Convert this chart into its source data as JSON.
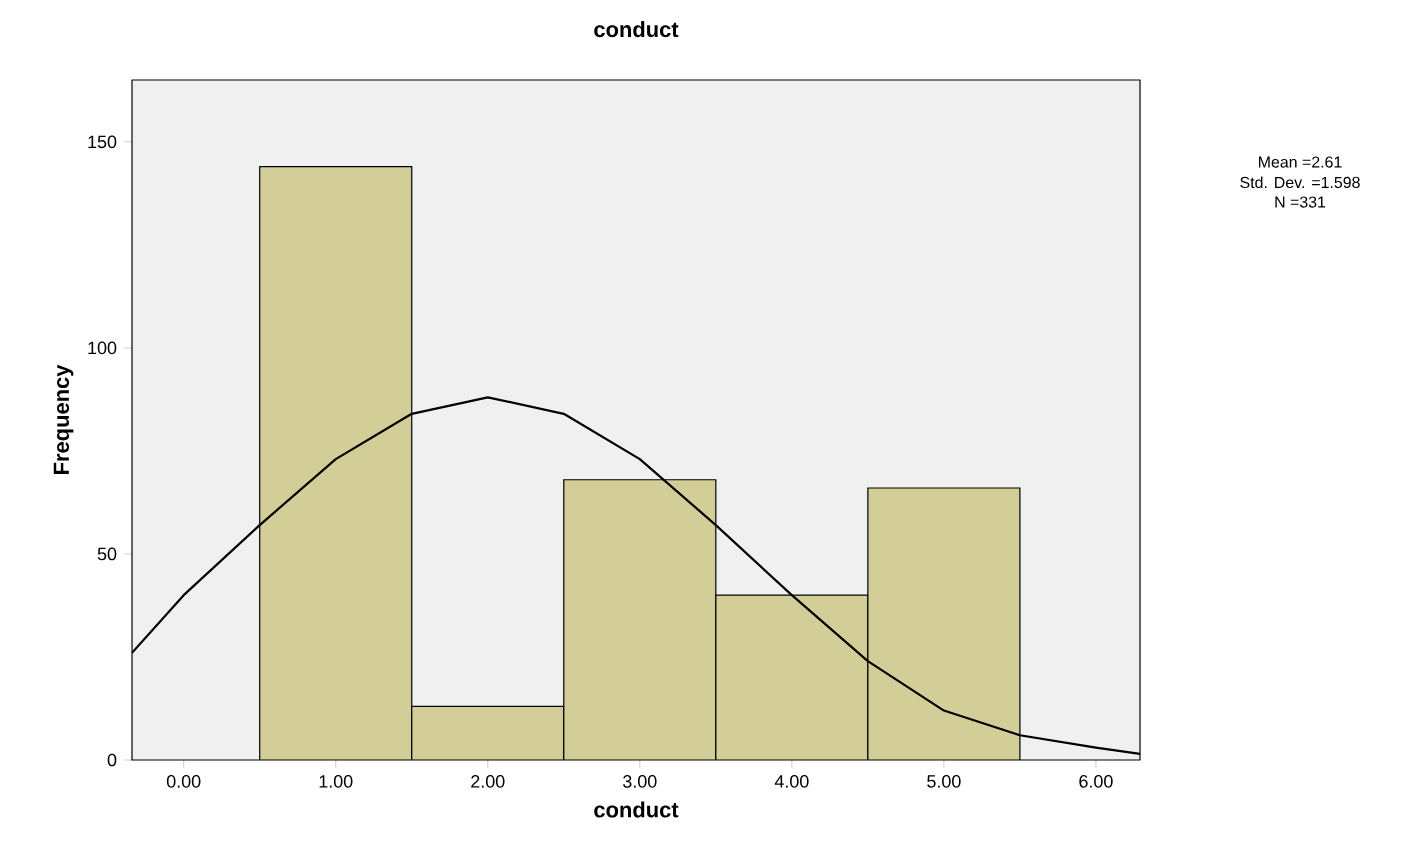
{
  "chart_data": {
    "type": "histogram",
    "title": "conduct",
    "xlabel": "conduct",
    "ylabel": "Frequency",
    "bins": [
      0.5,
      1.5,
      2.5,
      3.5,
      4.5,
      5.5
    ],
    "values": [
      144,
      13,
      68,
      40,
      66
    ],
    "color": "#d3ce97",
    "series": [
      {
        "type": "line",
        "color": "#000000",
        "x": [
          -0.34,
          0,
          0.5,
          1.0,
          1.5,
          2.0,
          2.5,
          3.0,
          3.5,
          4.0,
          4.5,
          5.0,
          5.5,
          6.0,
          6.29
        ],
        "values": [
          26,
          40,
          57,
          73,
          84,
          88,
          84,
          73,
          57,
          40,
          24,
          12,
          6,
          3,
          1.5
        ]
      }
    ],
    "xlim": [
      -0.34,
      6.29
    ],
    "ylim": [
      0,
      165
    ],
    "xticks": [
      {
        "value": 0,
        "label": "0.00"
      },
      {
        "value": 1,
        "label": "1.00"
      },
      {
        "value": 2,
        "label": "2.00"
      },
      {
        "value": 3,
        "label": "3.00"
      },
      {
        "value": 4,
        "label": "4.00"
      },
      {
        "value": 5,
        "label": "5.00"
      },
      {
        "value": 6,
        "label": "6.00"
      }
    ],
    "yticks": [
      0,
      50,
      100,
      150
    ],
    "annotations": [
      "Mean =2.61",
      "Std. Dev. =1.598",
      "N =331"
    ]
  }
}
